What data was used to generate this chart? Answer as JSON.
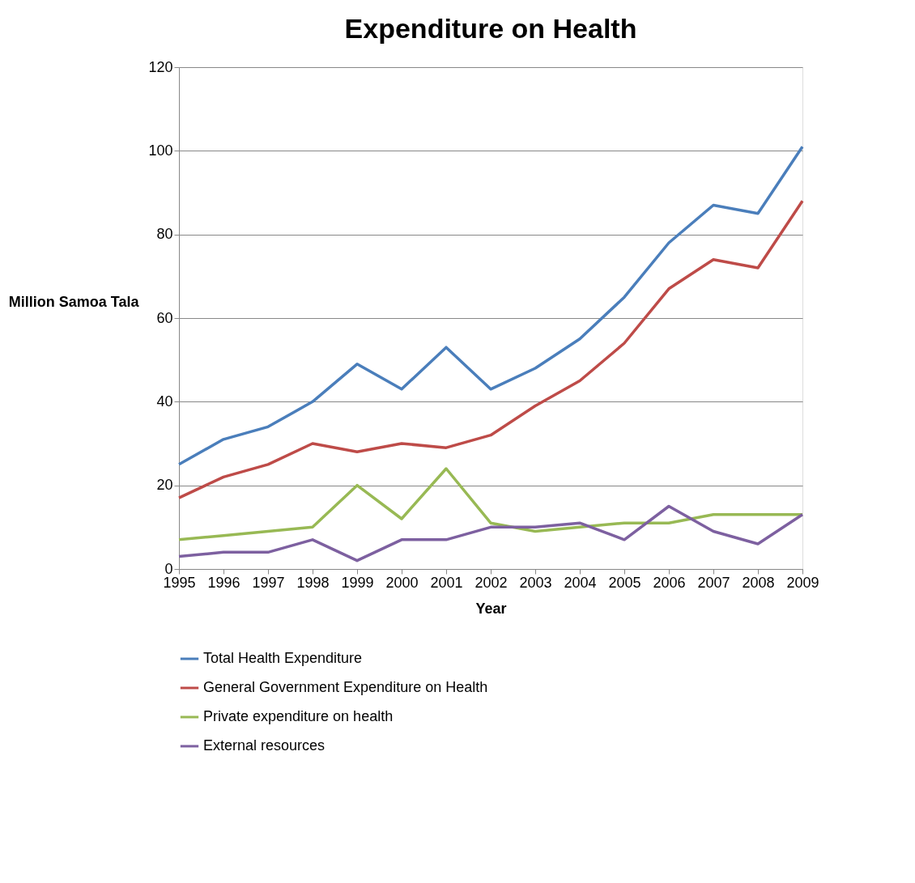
{
  "chart_data": {
    "type": "line",
    "title": "Expenditure on Health",
    "xlabel": "Year",
    "ylabel": "Million Samoa Tala",
    "categories": [
      "1995",
      "1996",
      "1997",
      "1998",
      "1999",
      "2000",
      "2001",
      "2002",
      "2003",
      "2004",
      "2005",
      "2006",
      "2007",
      "2008",
      "2009"
    ],
    "series": [
      {
        "name": "Total Health Expenditure",
        "color": "#4a7ebb",
        "values": [
          25,
          31,
          34,
          40,
          49,
          43,
          53,
          43,
          48,
          55,
          65,
          78,
          87,
          85,
          101
        ]
      },
      {
        "name": "General Government Expenditure on Health",
        "color": "#be4b48",
        "values": [
          17,
          22,
          25,
          30,
          28,
          30,
          29,
          32,
          39,
          45,
          54,
          67,
          74,
          72,
          88
        ]
      },
      {
        "name": "Private expenditure on health",
        "color": "#98b954",
        "values": [
          7,
          8,
          9,
          10,
          20,
          12,
          24,
          11,
          9,
          10,
          11,
          11,
          13,
          13,
          13
        ]
      },
      {
        "name": "External resources",
        "color": "#7d60a0",
        "values": [
          3,
          4,
          4,
          7,
          2,
          7,
          7,
          10,
          10,
          11,
          7,
          15,
          9,
          6,
          13
        ]
      }
    ],
    "ylim": [
      0,
      120
    ],
    "yticks": [
      0,
      20,
      40,
      60,
      80,
      100,
      120
    ],
    "grid": "y",
    "legend": "bottom",
    "marker": "none",
    "line_style": "solid"
  }
}
